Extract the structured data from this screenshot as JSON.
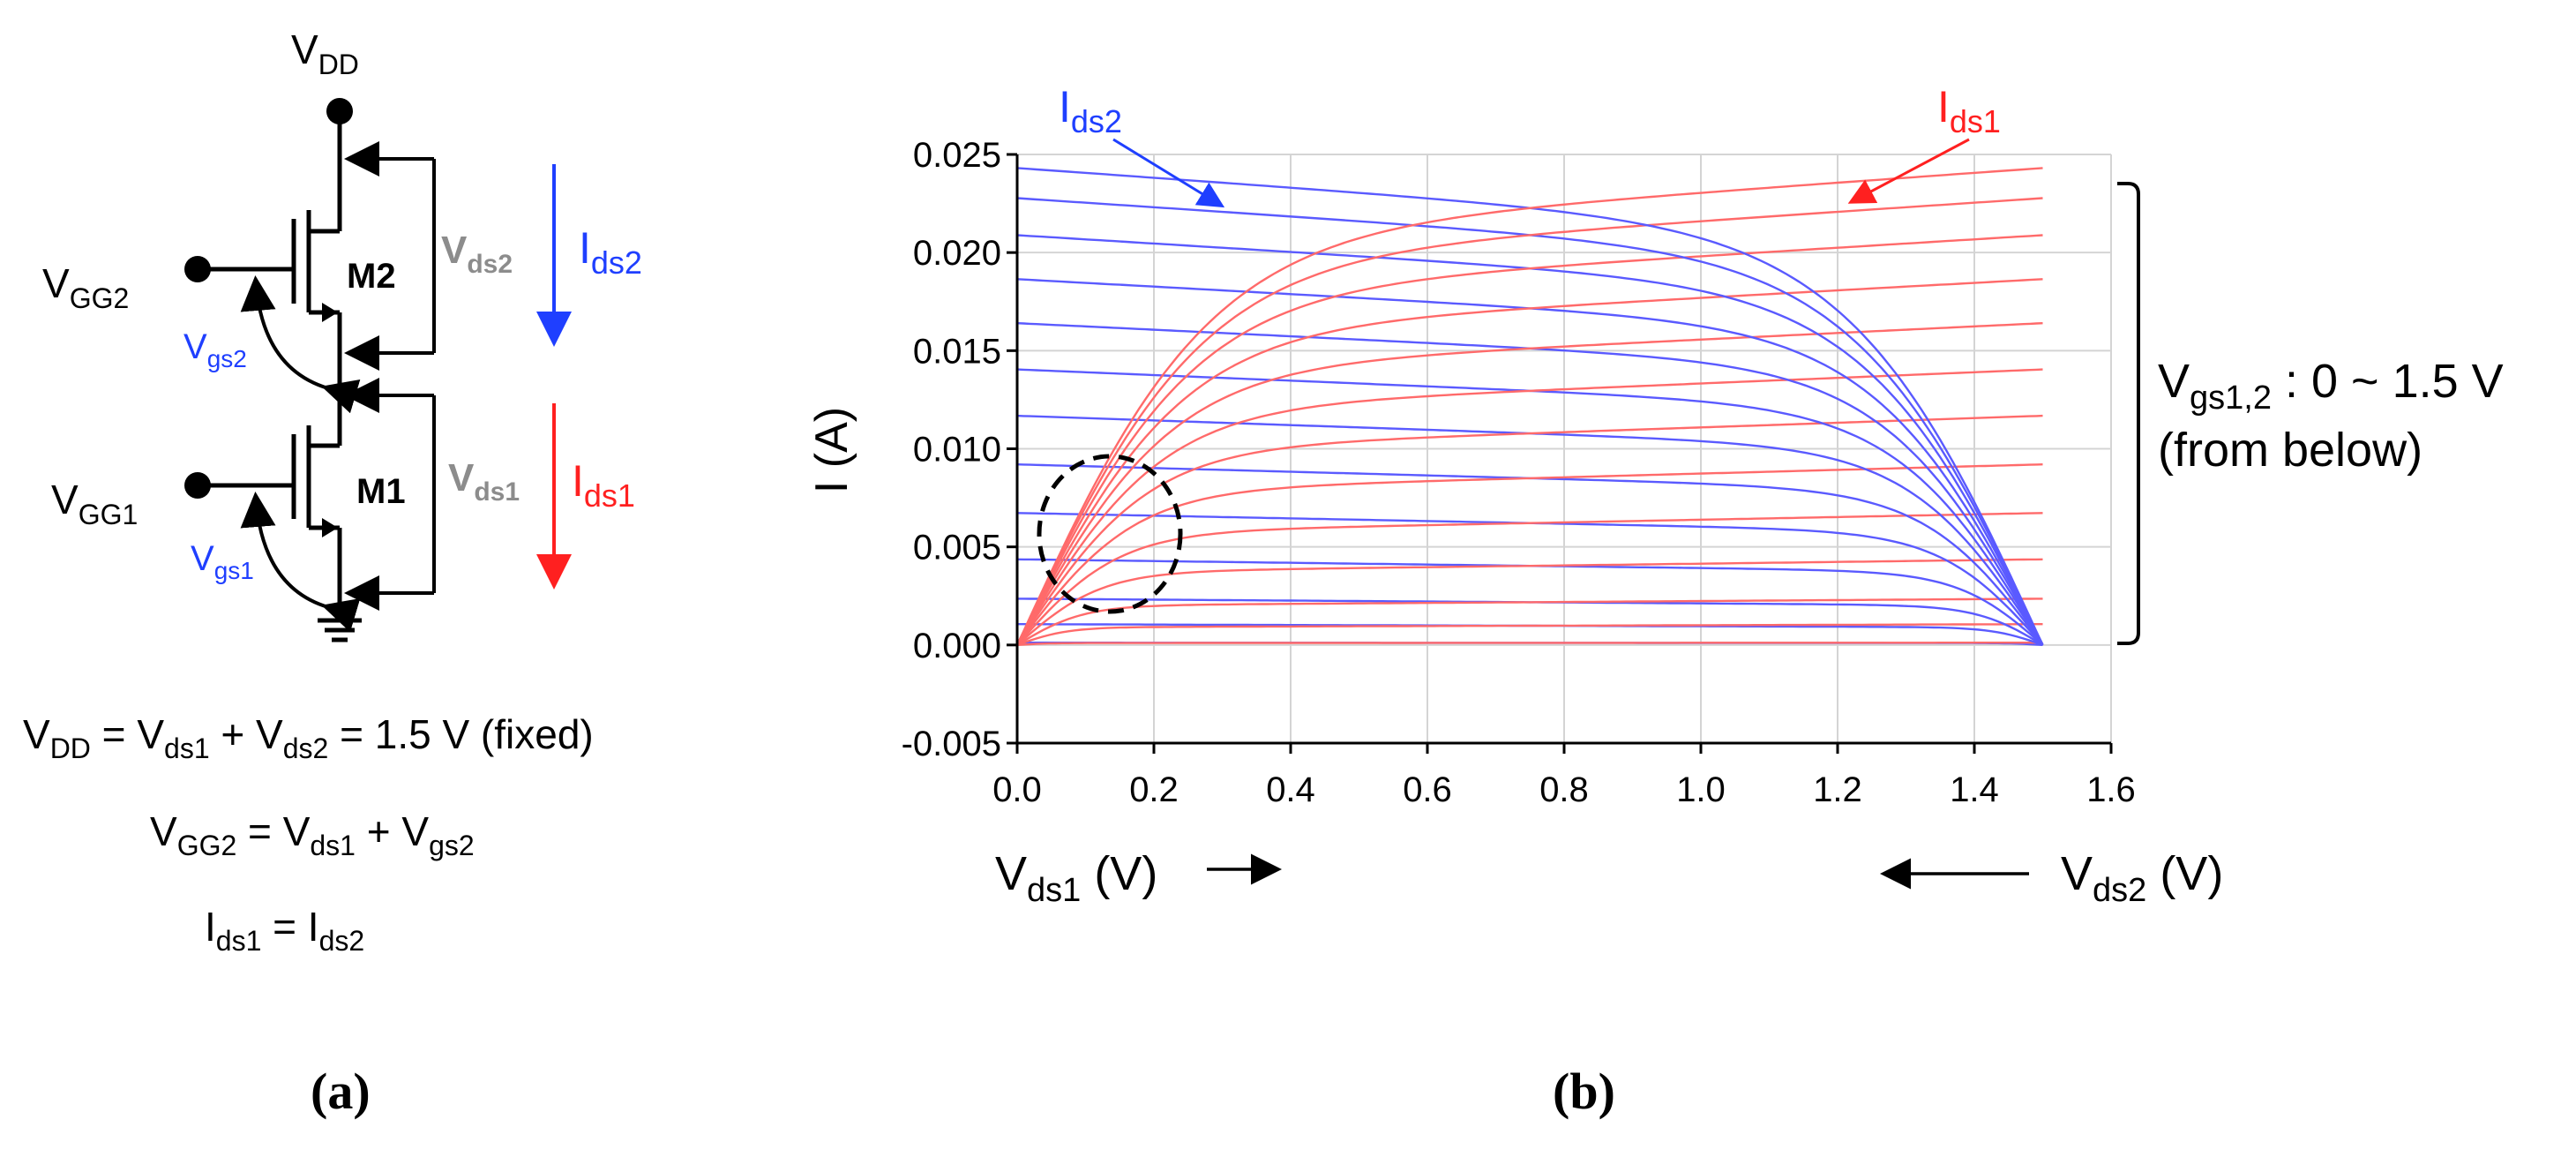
{
  "colors": {
    "ink": "#000000",
    "gray_label": "#8c8c8c",
    "blue": "#1f3fff",
    "red": "#ff2020",
    "curve_blue": "#5a5aff",
    "curve_red": "#ff6a6a",
    "grid": "#d4d4d4"
  },
  "circuit": {
    "vdd": {
      "main": "V",
      "sub": "DD"
    },
    "vgg2": {
      "main": "V",
      "sub": "GG2"
    },
    "vgg1": {
      "main": "V",
      "sub": "GG1"
    },
    "m2": "M2",
    "m1": "M1",
    "vgs2": {
      "main": "V",
      "sub": "gs2"
    },
    "vgs1": {
      "main": "V",
      "sub": "gs1"
    },
    "vds2": {
      "main": "V",
      "sub": "ds2"
    },
    "vds1": {
      "main": "V",
      "sub": "ds1"
    },
    "ids2": {
      "main": "I",
      "sub": "ds2"
    },
    "ids1": {
      "main": "I",
      "sub": "ds1"
    }
  },
  "equations": {
    "eq1": {
      "a": "V",
      "a_sub": "DD",
      "b": " = V",
      "b_sub": "ds1",
      "c": " + V",
      "c_sub": "ds2",
      "d": " = 1.5 V (fixed)"
    },
    "eq2": {
      "a": "V",
      "a_sub": "GG2",
      "b": " = V",
      "b_sub": "ds1",
      "c": " + V",
      "c_sub": "gs2"
    },
    "eq3": {
      "a": "I",
      "a_sub": "ds1",
      "b": " = I",
      "b_sub": "ds2"
    }
  },
  "panel_labels": {
    "a": "(a)",
    "b": "(b)"
  },
  "chart_data": {
    "type": "line",
    "title": "",
    "xlabel": {
      "main": "V",
      "sub": "ds1",
      "unit": " (V)",
      "arrow": "→"
    },
    "xlabel2": {
      "main": "V",
      "sub": "ds2",
      "unit": " (V)",
      "arrow": "←"
    },
    "ylabel": "I (A)",
    "xlim": [
      0,
      1.6
    ],
    "ylim": [
      -0.005,
      0.025
    ],
    "x_ticks": [
      "0.0",
      "0.2",
      "0.4",
      "0.6",
      "0.8",
      "1.0",
      "1.2",
      "1.4",
      "1.6"
    ],
    "y_ticks": [
      "-0.005",
      "0.000",
      "0.005",
      "0.010",
      "0.015",
      "0.020",
      "0.025"
    ],
    "grid": true,
    "vds_total": 1.5,
    "series_ids1_label": {
      "main": "I",
      "sub": "ds1"
    },
    "series_ids2_label": {
      "main": "I",
      "sub": "ds2"
    },
    "bracket_label": {
      "main": "V",
      "sub": "gs1,2",
      "rest": " : 0 ~ 1.5 V",
      "line2": "(from below)"
    },
    "saturation_currents_A": [
      0.0001,
      0.0009,
      0.002,
      0.0037,
      0.0057,
      0.0078,
      0.0099,
      0.0119,
      0.0139,
      0.0158,
      0.0177,
      0.0193,
      0.0206
    ],
    "output_slope_per_V": 0.12,
    "knee_scale": 1.35,
    "annotations": [
      "dashed circle near origin (low-V crossover region)"
    ]
  }
}
